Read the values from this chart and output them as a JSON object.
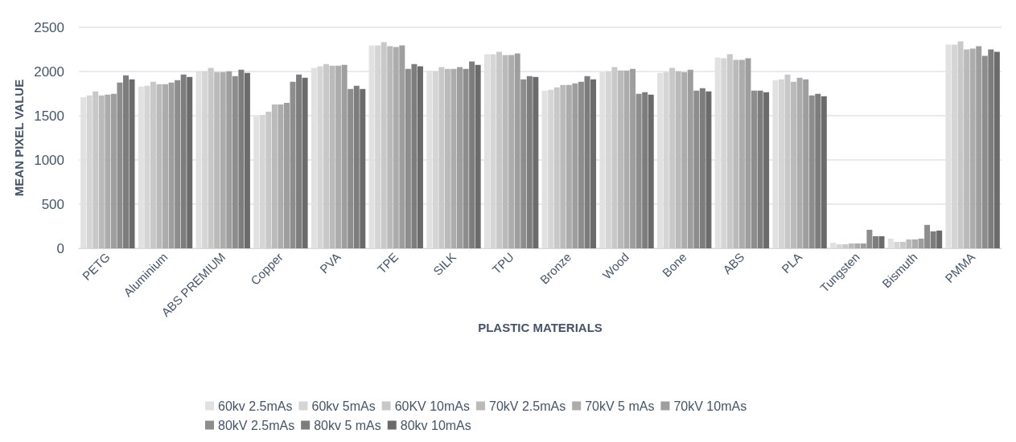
{
  "chart_data": {
    "type": "bar",
    "xlabel": "PLASTIC MATERIALS",
    "ylabel": "MEAN PIXEL VALUE",
    "categories": [
      "PETG",
      "Aluminium",
      "ABS PREMIUM",
      "Copper",
      "PVA",
      "TPE",
      "SILK",
      "TPU",
      "Bronze",
      "Wood",
      "Bone",
      "ABS",
      "PLA",
      "Tungsten",
      "Bismuth",
      "PMMA"
    ],
    "series": [
      {
        "name": "60kv 2.5mAs",
        "color": "#e1e1e1",
        "values": [
          1710,
          1829,
          2003,
          1494,
          2040,
          2296,
          2012,
          2195,
          1784,
          1994,
          1985,
          2159,
          1902,
          64,
          110,
          2305
        ]
      },
      {
        "name": "60kv 5mAs",
        "color": "#d5d5d5",
        "values": [
          1729,
          1838,
          2003,
          1509,
          2058,
          2296,
          2003,
          2195,
          1793,
          2003,
          1994,
          2149,
          1912,
          46,
          73,
          2305
        ]
      },
      {
        "name": "60KV 10mAs",
        "color": "#c8c8c8",
        "values": [
          1774,
          1884,
          2040,
          1546,
          2085,
          2332,
          2049,
          2223,
          1820,
          2049,
          2040,
          2195,
          1966,
          46,
          73,
          2341
        ]
      },
      {
        "name": "70kV 2.5mAs",
        "color": "#bababa",
        "values": [
          1729,
          1857,
          1994,
          1628,
          2067,
          2287,
          2030,
          2186,
          1848,
          2012,
          2003,
          2131,
          1884,
          55,
          101,
          2250
        ]
      },
      {
        "name": "70kV 5 mAs",
        "color": "#acacac",
        "values": [
          1738,
          1857,
          1994,
          1628,
          2067,
          2277,
          2030,
          2186,
          1848,
          2012,
          1994,
          2131,
          1930,
          55,
          101,
          2259
        ]
      },
      {
        "name": "70kV 10mAs",
        "color": "#9e9e9e",
        "values": [
          1747,
          1875,
          2003,
          1646,
          2076,
          2296,
          2049,
          2204,
          1866,
          2030,
          2021,
          2149,
          1912,
          55,
          110,
          2287
        ]
      },
      {
        "name": "80kV 2.5mAs",
        "color": "#8d8d8d",
        "values": [
          1875,
          1902,
          1948,
          1884,
          1802,
          2030,
          2030,
          1912,
          1884,
          1747,
          1784,
          1784,
          1729,
          210,
          265,
          2177
        ]
      },
      {
        "name": "80kv 5 mAs",
        "color": "#7d7d7d",
        "values": [
          1957,
          1966,
          2021,
          1966,
          1838,
          2085,
          2113,
          1948,
          1948,
          1765,
          1811,
          1784,
          1747,
          137,
          192,
          2250
        ]
      },
      {
        "name": "80kv 10mAs",
        "color": "#6b6b6b",
        "values": [
          1912,
          1939,
          1985,
          1930,
          1802,
          2058,
          2076,
          1939,
          1912,
          1738,
          1774,
          1765,
          1720,
          137,
          201,
          2223
        ]
      }
    ],
    "ylim": [
      0,
      2500
    ],
    "yticks": [
      0,
      500,
      1000,
      1500,
      2000,
      2500
    ],
    "grid": "y",
    "legend": "bottom"
  }
}
